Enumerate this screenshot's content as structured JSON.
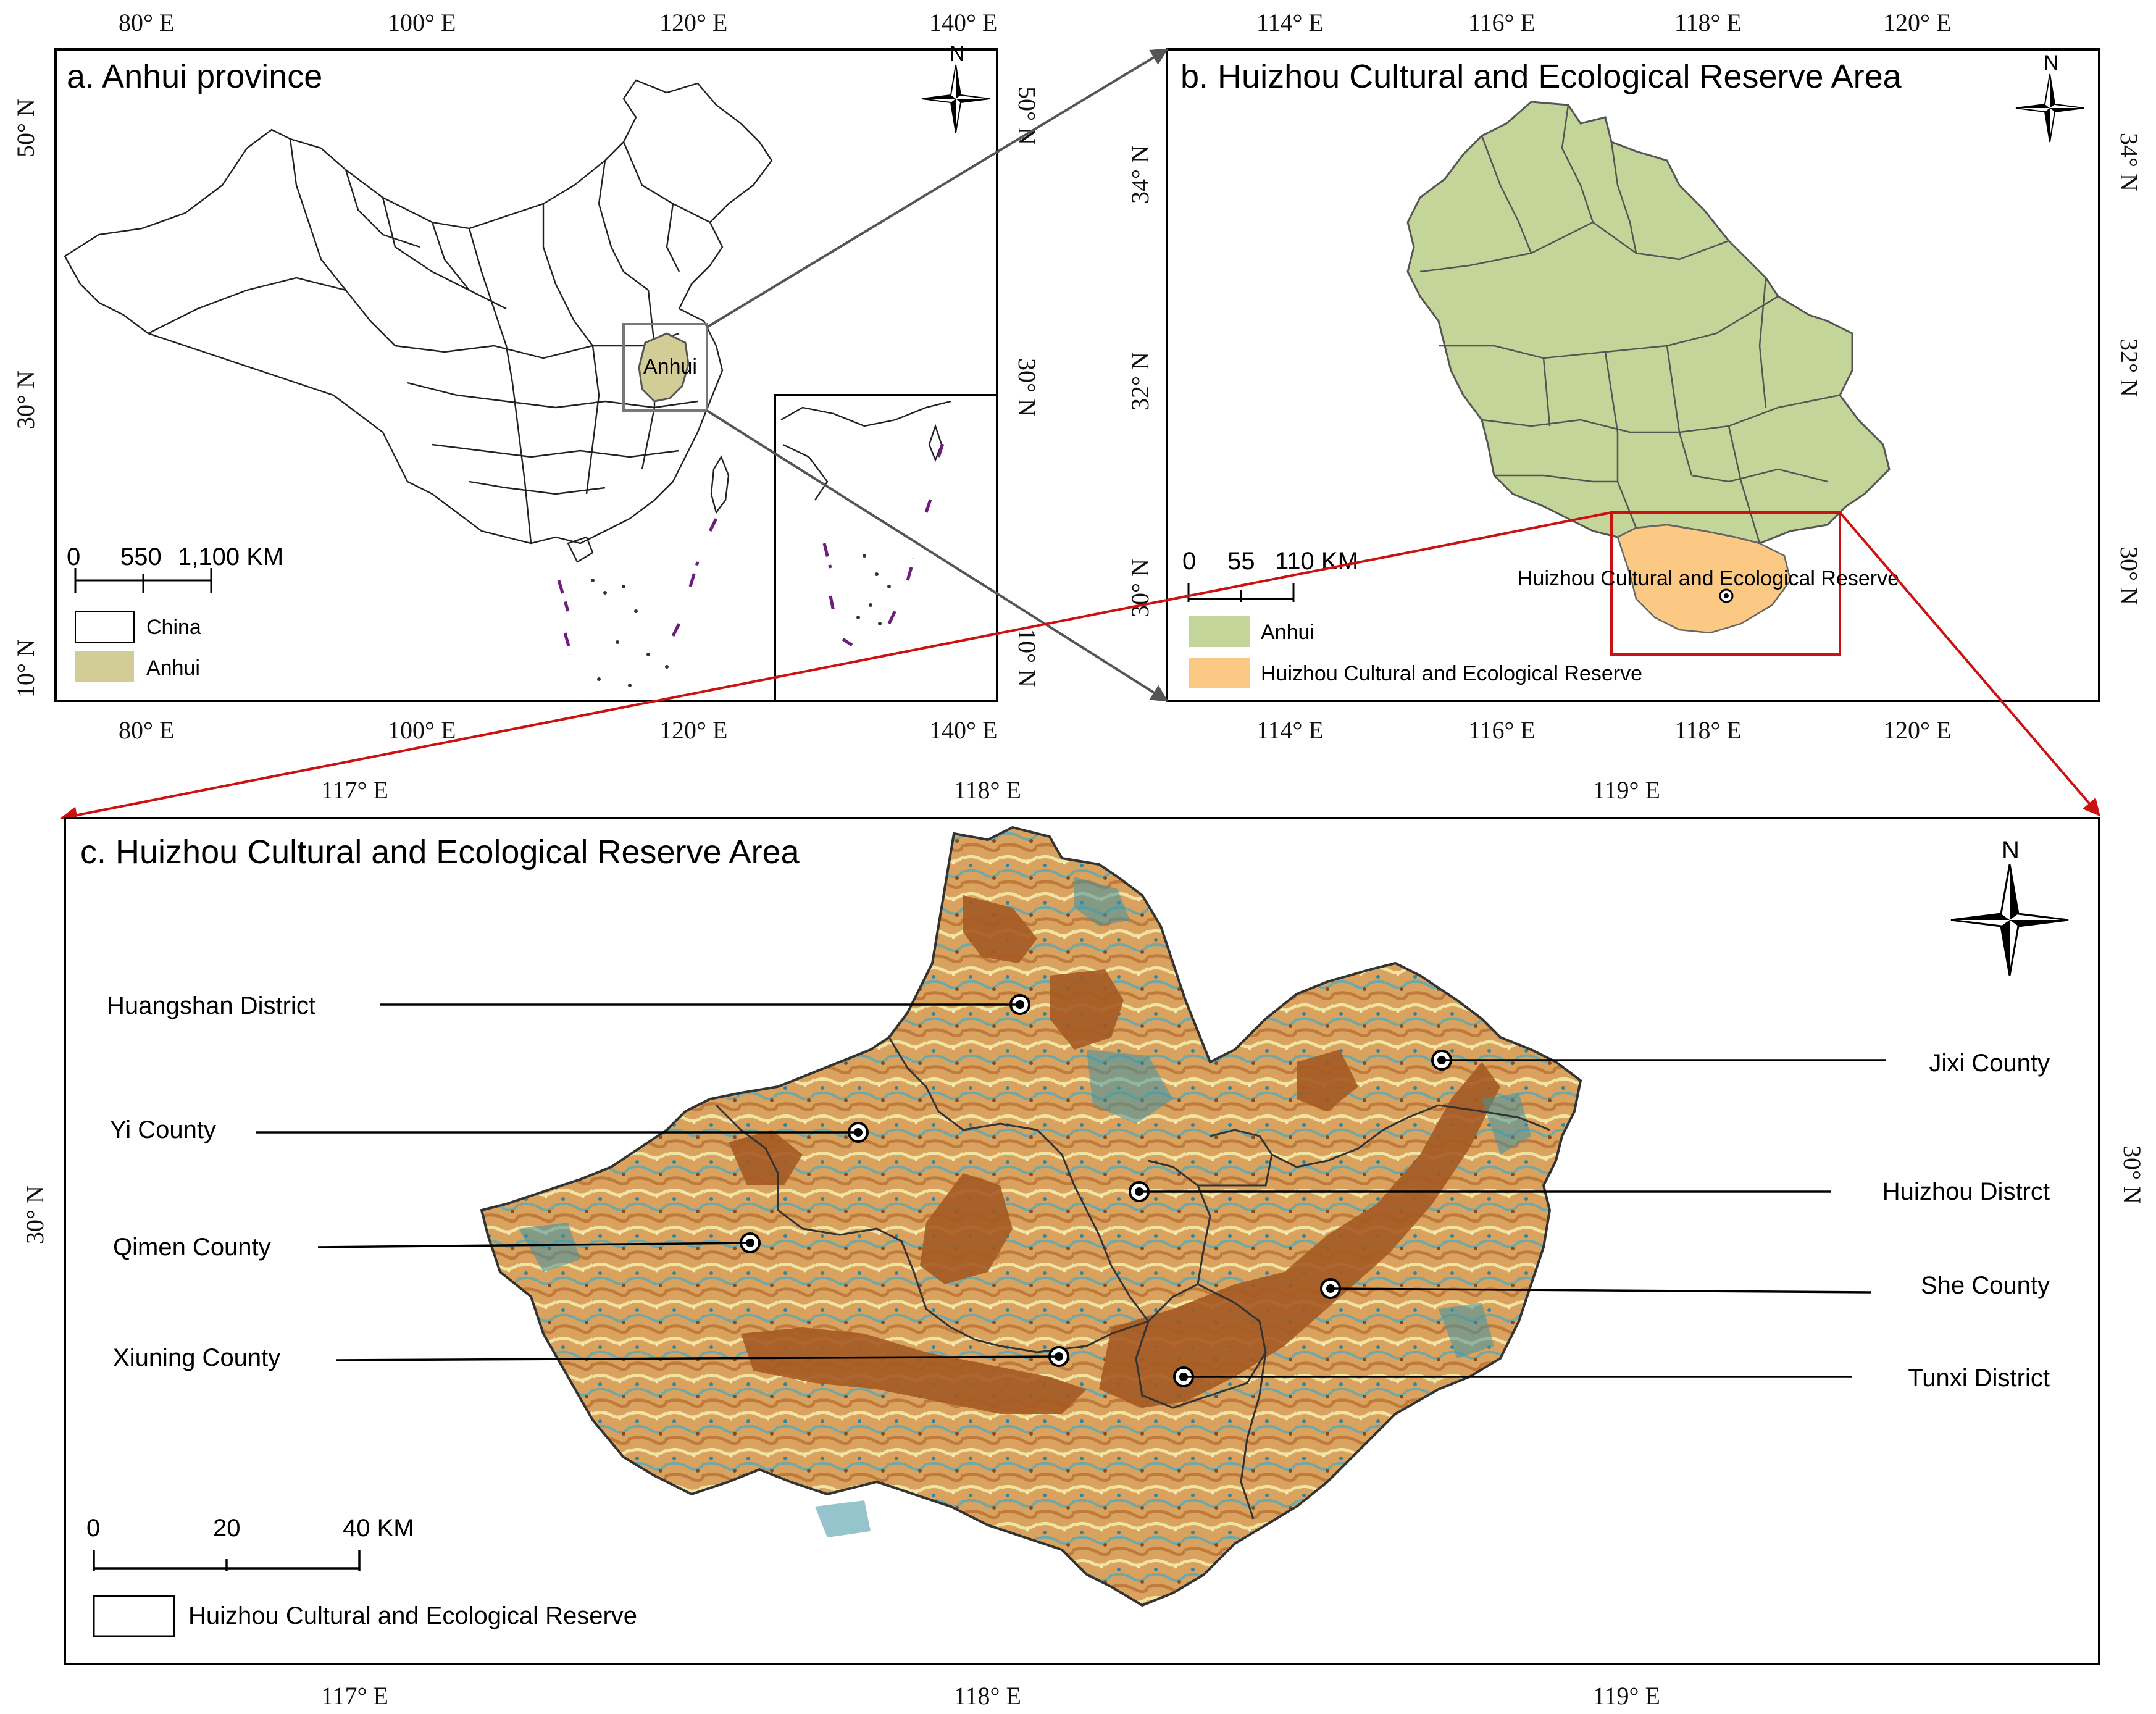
{
  "panels": {
    "a": {
      "title": "a. Anhui province",
      "top_ticks": [
        "80° E",
        "100° E",
        "120° E",
        "140° E"
      ],
      "bottom_ticks": [
        "80° E",
        "100° E",
        "120° E",
        "140° E"
      ],
      "left_ticks": [
        "50° N",
        "30° N",
        "10° N"
      ],
      "right_ticks": [
        "50° N",
        "30° N",
        "10° N"
      ],
      "map_label": "Anhui",
      "scale_labels": [
        "0",
        "550",
        "1,100 KM"
      ],
      "legend": [
        {
          "label": "China",
          "color": "#ffffff"
        },
        {
          "label": "Anhui",
          "color": "#d2cc96"
        }
      ],
      "north": "N"
    },
    "b": {
      "title": "b. Huizhou Cultural and Ecological Reserve Area",
      "top_ticks": [
        "114° E",
        "116° E",
        "118° E",
        "120° E"
      ],
      "bottom_ticks": [
        "114° E",
        "116° E",
        "118° E",
        "120° E"
      ],
      "left_ticks": [
        "34° N",
        "32° N",
        "30° N"
      ],
      "right_ticks": [
        "34° N",
        "32° N",
        "30° N"
      ],
      "map_label": "Huizhou Cultural and Ecological Reserve",
      "scale_labels": [
        "0",
        "55",
        "110 KM"
      ],
      "legend": [
        {
          "label": "Anhui",
          "color": "#c4d59a"
        },
        {
          "label": "Huizhou Cultural and Ecological Reserve",
          "color": "#fcc985"
        }
      ],
      "north": "N"
    },
    "c": {
      "title": "c. Huizhou Cultural and Ecological Reserve Area",
      "top_ticks": [
        "117° E",
        "118° E",
        "119° E"
      ],
      "bottom_ticks": [
        "117° E",
        "118° E",
        "119° E"
      ],
      "left_ticks": [
        "30° N"
      ],
      "right_ticks": [
        "30° N"
      ],
      "districts": [
        "Huangshan District",
        "Yi County",
        "Qimen County",
        "Xiuning County",
        "Jixi County",
        "Huizhou Distrct",
        "She County",
        "Tunxi District"
      ],
      "scale_labels": [
        "0",
        "20",
        "40 KM"
      ],
      "legend": [
        {
          "label": "Huizhou Cultural and Ecological Reserve",
          "color": "#ffffff"
        }
      ],
      "north": "N",
      "colors": {
        "low": "#1e7f96",
        "mid": "#f1e3a2",
        "high": "#a45a24"
      }
    }
  }
}
